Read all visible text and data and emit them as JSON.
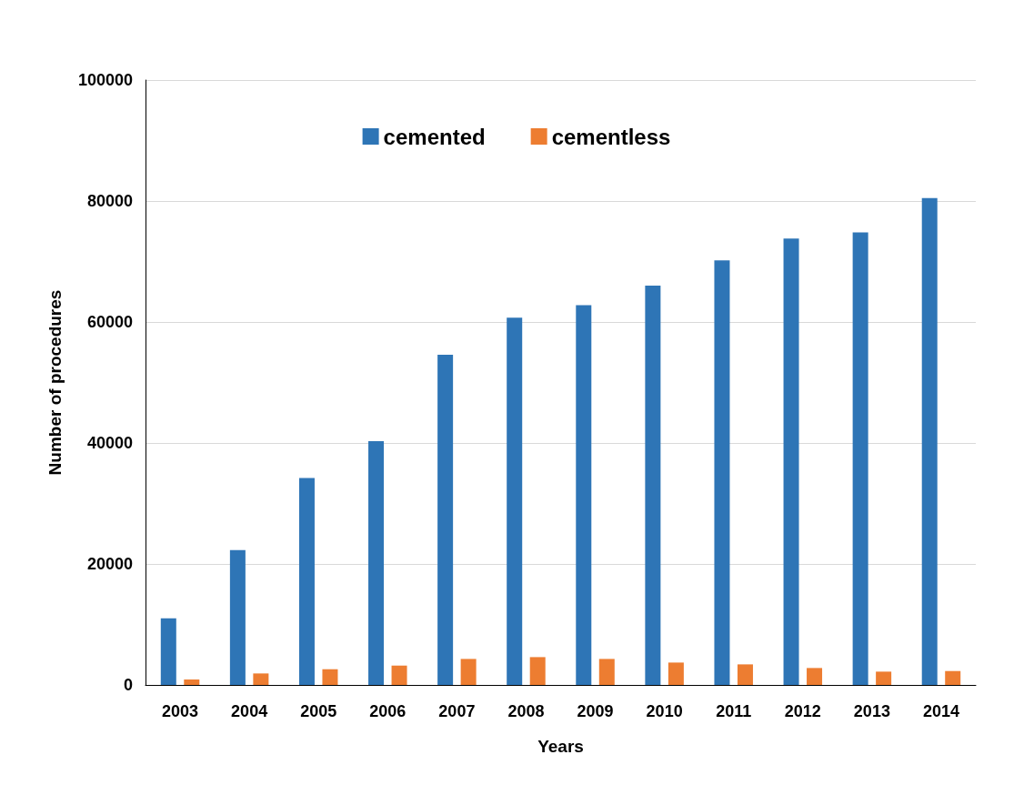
{
  "chart_data": {
    "type": "bar",
    "xlabel": "Years",
    "ylabel": "Number of procedures",
    "categories": [
      "2003",
      "2004",
      "2005",
      "2006",
      "2007",
      "2008",
      "2009",
      "2010",
      "2011",
      "2012",
      "2013",
      "2014"
    ],
    "series": [
      {
        "name": "cemented",
        "color": "#2e75b6",
        "values": [
          11000,
          22300,
          34200,
          40300,
          54600,
          60700,
          62800,
          66000,
          70200,
          73800,
          74800,
          80500
        ]
      },
      {
        "name": "cementless",
        "color": "#ed7d31",
        "values": [
          900,
          1900,
          2600,
          3200,
          4300,
          4600,
          4300,
          3700,
          3400,
          2800,
          2200,
          2300
        ]
      }
    ],
    "ylim": [
      0,
      100000
    ],
    "yticks": [
      0,
      20000,
      40000,
      60000,
      80000,
      100000
    ],
    "grid": "y",
    "legend": "top"
  }
}
